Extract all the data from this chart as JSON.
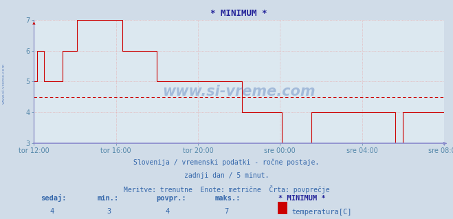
{
  "title": "* MINIMUM *",
  "bg_color": "#d0dce8",
  "plot_bg_color": "#dce8f0",
  "grid_color": "#e8a0a0",
  "line_color": "#cc0000",
  "avg_line_color": "#cc0000",
  "avg_line_value": 4.5,
  "xlabel_color": "#5588aa",
  "ylabel_color": "#5588aa",
  "title_color": "#222299",
  "text_color": "#3366aa",
  "axis_color": "#7777bb",
  "xaxis_color": "#8888cc",
  "ylim": [
    3,
    7
  ],
  "yticks": [
    3,
    4,
    5,
    6,
    7
  ],
  "xtick_labels": [
    "tor 12:00",
    "tor 16:00",
    "tor 20:00",
    "sre 00:00",
    "sre 04:00",
    "sre 08:00"
  ],
  "subtitle1": "Slovenija / vremenski podatki - ročne postaje.",
  "subtitle2": "zadnji dan / 5 minut.",
  "subtitle3": "Meritve: trenutne  Enote: metrične  Črta: povprečje",
  "footer_label1": "sedaj:",
  "footer_val1": "4",
  "footer_label2": "min.:",
  "footer_val2": "3",
  "footer_label3": "povpr.:",
  "footer_val3": "4",
  "footer_label4": "maks.:",
  "footer_val4": "7",
  "footer_series": "* MINIMUM *",
  "footer_legend": "temperatura[C]",
  "legend_color": "#cc0000",
  "watermark_text": "www.si-vreme.com",
  "watermark_color": "#2255aa",
  "sidewatermark_text": "www.si-vreme.com",
  "y_data": [
    5,
    5,
    6,
    6,
    6,
    6,
    6,
    5,
    5,
    5,
    5,
    5,
    5,
    5,
    5,
    5,
    5,
    5,
    5,
    5,
    6,
    6,
    6,
    6,
    6,
    6,
    6,
    6,
    6,
    6,
    7,
    7,
    7,
    7,
    7,
    7,
    7,
    7,
    7,
    7,
    7,
    7,
    7,
    7,
    7,
    7,
    7,
    7,
    7,
    7,
    7,
    7,
    7,
    7,
    7,
    7,
    7,
    7,
    7,
    7,
    7,
    7,
    6,
    6,
    6,
    6,
    6,
    6,
    6,
    6,
    6,
    6,
    6,
    6,
    6,
    6,
    6,
    6,
    6,
    6,
    6,
    6,
    6,
    6,
    6,
    6,
    5,
    5,
    5,
    5,
    5,
    5,
    5,
    5,
    5,
    5,
    5,
    5,
    5,
    5,
    5,
    5,
    5,
    5,
    5,
    5,
    5,
    5,
    5,
    5,
    5,
    5,
    5,
    5,
    5,
    5,
    5,
    5,
    5,
    5,
    5,
    5,
    5,
    5,
    5,
    5,
    5,
    5,
    5,
    5,
    5,
    5,
    5,
    5,
    5,
    5,
    5,
    5,
    5,
    5,
    5,
    5,
    5,
    5,
    5,
    5,
    4,
    4,
    4,
    4,
    4,
    4,
    4,
    4,
    4,
    4,
    4,
    4,
    4,
    4,
    4,
    4,
    4,
    4,
    4,
    4,
    4,
    4,
    4,
    4,
    4,
    4,
    4,
    4,
    3,
    3,
    3,
    3,
    3,
    3,
    3,
    3,
    3,
    3,
    3,
    3,
    3,
    3,
    3,
    3,
    3,
    3,
    3,
    3,
    3,
    4,
    4,
    4,
    4,
    4,
    4,
    4,
    4,
    4,
    4,
    4,
    4,
    4,
    4,
    4,
    4,
    4,
    4,
    4,
    4,
    4,
    4,
    4,
    4,
    4,
    4,
    4,
    4,
    4,
    4,
    4,
    4,
    4,
    4,
    4,
    4,
    4,
    4,
    4,
    4,
    4,
    4,
    4,
    4,
    4,
    4,
    4,
    4,
    4,
    4,
    4,
    4,
    4,
    4,
    4,
    4,
    4,
    4,
    4,
    3,
    3,
    3,
    3,
    3,
    4,
    4,
    4,
    4,
    4,
    4,
    4,
    4,
    4,
    4,
    4,
    4,
    4,
    4,
    4,
    4,
    4,
    4,
    4,
    4,
    4,
    4,
    4,
    4,
    4,
    4,
    4,
    4,
    4,
    4
  ]
}
